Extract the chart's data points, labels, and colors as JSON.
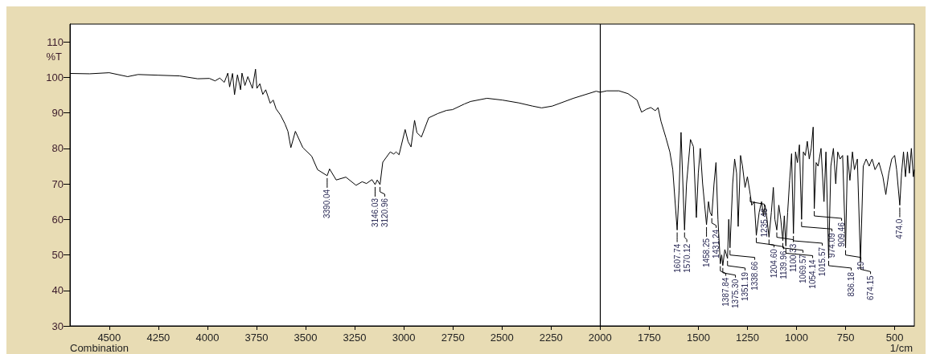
{
  "chart_data": {
    "type": "line",
    "xlabel": "1/cm",
    "ylabel": "%T",
    "xlim": [
      4700,
      400
    ],
    "xticks": [
      4500,
      4250,
      4000,
      3750,
      3500,
      3250,
      3000,
      2750,
      2500,
      2250,
      2000,
      1750,
      1500,
      1250,
      1000,
      750,
      500
    ],
    "ylim": [
      30,
      115
    ],
    "yticks": [
      30,
      40,
      50,
      60,
      70,
      80,
      90,
      100,
      110
    ],
    "ref_lines": [
      {
        "axis": "x",
        "value": 2000,
        "color": "#000000"
      }
    ],
    "series": [
      {
        "color": "#000000",
        "x": [
          4700,
          4600,
          4500,
          4406,
          4353,
          4250,
          4141,
          4050,
          3990,
          3961,
          3937,
          3914,
          3896,
          3887,
          3872,
          3862,
          3847,
          3831,
          3824,
          3809,
          3794,
          3771,
          3755,
          3748,
          3733,
          3718,
          3703,
          3680,
          3665,
          3650,
          3628,
          3605,
          3590,
          3575,
          3552,
          3514,
          3469,
          3439,
          3390.04,
          3378,
          3344,
          3295,
          3243,
          3212,
          3190,
          3162,
          3146.03,
          3135,
          3120.96,
          3107,
          3069,
          3051,
          3039,
          3024,
          2993,
          2978,
          2963,
          2945,
          2933,
          2910,
          2873,
          2827,
          2782,
          2752,
          2691,
          2660,
          2576,
          2498,
          2414,
          2344,
          2298,
          2244,
          2136,
          2020,
          2000,
          1966,
          1904,
          1858,
          1812,
          1789,
          1765,
          1742,
          1719,
          1705,
          1690,
          1665,
          1645,
          1630,
          1607.74,
          1598,
          1588,
          1570.12,
          1560,
          1540,
          1525,
          1510,
          1500,
          1490,
          1478,
          1458.25,
          1448,
          1440,
          1431.24,
          1420,
          1410,
          1400,
          1387.84,
          1381,
          1375.3,
          1365,
          1351.19,
          1345,
          1338.66,
          1325,
          1315,
          1305,
          1297,
          1285,
          1275,
          1262,
          1250,
          1235.46,
          1228,
          1215,
          1204.6,
          1190,
          1178,
          1168,
          1160,
          1150,
          1139.96,
          1128,
          1118,
          1110,
          1100.33,
          1090,
          1080,
          1069.57,
          1062,
          1054.14,
          1045,
          1035,
          1025,
          1015.57,
          1005,
          995,
          985,
          974.09,
          965,
          955,
          945,
          935,
          925,
          915,
          909.46,
          900,
          890,
          875,
          860,
          850,
          836.18,
          825,
          812,
          800,
          790,
          778,
          765,
          750,
          740,
          728,
          715,
          705,
          690,
          674.15,
          660,
          645,
          630,
          615,
          600,
          580,
          560,
          545,
          530,
          515,
          500,
          490,
          474,
          465,
          455,
          445,
          435,
          425,
          415,
          405,
          400
        ],
        "values": [
          101.1,
          101.0,
          101.3,
          100.2,
          100.8,
          100.6,
          100.4,
          99.6,
          99.7,
          99.0,
          99.8,
          98.6,
          101.2,
          97.3,
          101.1,
          95.1,
          100.7,
          96.5,
          101.2,
          97.7,
          100.2,
          96.9,
          102.3,
          96.9,
          98.2,
          95.2,
          96.5,
          92.7,
          93.6,
          91.1,
          89.4,
          86.9,
          84.8,
          80.2,
          84.8,
          80.2,
          77.8,
          74.0,
          72.3,
          74.2,
          71.1,
          71.9,
          69.6,
          70.6,
          70.1,
          71.2,
          69.8,
          71.1,
          69.8,
          76.1,
          79.0,
          78.4,
          79.0,
          78.2,
          85.3,
          81.9,
          80.4,
          87.9,
          84.4,
          83.2,
          88.6,
          89.8,
          90.7,
          90.9,
          92.5,
          93.2,
          94.1,
          93.6,
          92.8,
          91.9,
          91.4,
          91.9,
          94.1,
          96.1,
          95.8,
          96.2,
          96.2,
          95.4,
          93.6,
          90.2,
          91.0,
          91.5,
          90.6,
          91.5,
          87.6,
          83.0,
          79.0,
          74.0,
          57.0,
          68.0,
          84.5,
          57.0,
          70.0,
          82.5,
          80.5,
          60.5,
          73.0,
          80.0,
          70.0,
          58.5,
          65.0,
          62.0,
          61.0,
          70.0,
          76.0,
          60.0,
          47.5,
          50.0,
          47.0,
          51.5,
          49.0,
          60.0,
          52.0,
          70.0,
          77.0,
          73.0,
          58.0,
          78.0,
          75.0,
          69.0,
          72.0,
          67.0,
          64.0,
          65.0,
          55.5,
          62.0,
          65.0,
          61.0,
          64.0,
          60.0,
          55.0,
          62.0,
          69.0,
          60.0,
          57.0,
          64.0,
          60.0,
          54.0,
          61.0,
          52.5,
          62.0,
          71.0,
          78.5,
          56.0,
          79.0,
          76.0,
          81.0,
          60.0,
          79.0,
          78.0,
          82.0,
          77.0,
          80.0,
          86.0,
          63.0,
          76.0,
          75.0,
          80.0,
          65.0,
          79.0,
          49.0,
          75.0,
          80.0,
          70.0,
          79.0,
          77.0,
          78.0,
          52.0,
          78.0,
          71.0,
          79.0,
          74.0,
          77.0,
          48.0,
          75.0,
          77.0,
          75.0,
          77.0,
          74.0,
          76.0,
          72.0,
          67.0,
          73.0,
          77.0,
          78.0,
          74.0,
          64.0,
          73.0,
          79.0,
          72.0,
          79.0,
          73.0,
          80.0,
          72.0,
          74.0
        ]
      }
    ],
    "annotations": [
      {
        "text": "3390.04",
        "x": 3390.04,
        "y": 72.3
      },
      {
        "text": "3146.03",
        "x": 3146.03,
        "y": 69.8
      },
      {
        "text": "3120.96",
        "x": 3120.96,
        "y": 69.8
      },
      {
        "text": "1607.74",
        "x": 1607.74,
        "y": 57
      },
      {
        "text": "1570.12",
        "x": 1570.12,
        "y": 57
      },
      {
        "text": "1458.25",
        "x": 1458.25,
        "y": 58.5
      },
      {
        "text": "1431.24",
        "x": 1431.24,
        "y": 61
      },
      {
        "text": "1387.84",
        "x": 1387.84,
        "y": 47.5
      },
      {
        "text": "1375.30",
        "x": 1375.3,
        "y": 47
      },
      {
        "text": "1351.19",
        "x": 1351.19,
        "y": 49
      },
      {
        "text": "1338.66",
        "x": 1338.66,
        "y": 52
      },
      {
        "text": "1235.46",
        "x": 1235.46,
        "y": 67
      },
      {
        "text": "1204.60",
        "x": 1204.6,
        "y": 55.5
      },
      {
        "text": "1139.96",
        "x": 1139.96,
        "y": 55
      },
      {
        "text": "1100.33",
        "x": 1100.33,
        "y": 57
      },
      {
        "text": "1069.57",
        "x": 1069.57,
        "y": 54
      },
      {
        "text": "1054.14",
        "x": 1054.14,
        "y": 52.5
      },
      {
        "text": "1015.57",
        "x": 1015.57,
        "y": 56
      },
      {
        "text": "974.09",
        "x": 974.09,
        "y": 60
      },
      {
        "text": "909.46",
        "x": 909.46,
        "y": 63
      },
      {
        "text": "836.18",
        "x": 836.18,
        "y": 49
      },
      {
        "text": "19",
        "x": 750,
        "y": 52
      },
      {
        "text": "674.15",
        "x": 674.15,
        "y": 48
      },
      {
        "text": "474.0",
        "x": 474,
        "y": 64
      },
      "Combination"
    ]
  }
}
